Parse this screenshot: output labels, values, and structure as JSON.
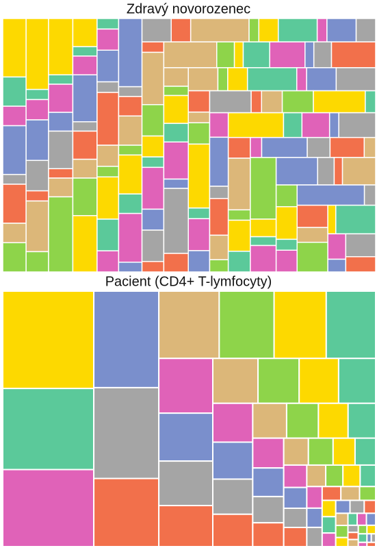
{
  "chart_data": [
    {
      "type": "treemap",
      "title": "Zdravý novorozenec",
      "colors": [
        "#fdd900",
        "#5bc99a",
        "#e062b8",
        "#7a8fcc",
        "#a5a5a5",
        "#f2704b",
        "#dcb779",
        "#8ed44a"
      ],
      "values": [
        6,
        3,
        2,
        5,
        1,
        4,
        2,
        3,
        7,
        1,
        2,
        4,
        3,
        1,
        5,
        2,
        6,
        1,
        3,
        2,
        4,
        1,
        2,
        8,
        3,
        1,
        2,
        5,
        1,
        3,
        2,
        4,
        6,
        1,
        2,
        3,
        1,
        5,
        2,
        1,
        4,
        3,
        2,
        7,
        1,
        2,
        3,
        1,
        4,
        2,
        5,
        1,
        3,
        2,
        6,
        1,
        2,
        4,
        1,
        3,
        2,
        1,
        5,
        3,
        2,
        1,
        4,
        2,
        3,
        1,
        6,
        2,
        1,
        3,
        4,
        1,
        2,
        5,
        2,
        1,
        3,
        2,
        4,
        1,
        7,
        2,
        3,
        1,
        2,
        5,
        1,
        3,
        4,
        2,
        1,
        2,
        6,
        1,
        3,
        2,
        4,
        1,
        2,
        3,
        5,
        1,
        2,
        4,
        1,
        3,
        2,
        1,
        6,
        2,
        3,
        1,
        4,
        2,
        5,
        1,
        3,
        2,
        1,
        4,
        2,
        3,
        1,
        7,
        2,
        1,
        3,
        5,
        2,
        1,
        4,
        2,
        3,
        1,
        2,
        6,
        1,
        3,
        2,
        4,
        1,
        5,
        2,
        1,
        3,
        2
      ]
    },
    {
      "type": "treemap",
      "title": "Pacient (CD4+ T-lymfocyty)",
      "colors": [
        "#fdd900",
        "#5bc99a",
        "#e062b8",
        "#7a8fcc",
        "#a5a5a5",
        "#f2704b",
        "#dcb779",
        "#8ed44a"
      ],
      "values": [
        240,
        200,
        190,
        170,
        160,
        120,
        110,
        100,
        95,
        90,
        80,
        70,
        65,
        60,
        55,
        50,
        48,
        45,
        42,
        40,
        38,
        35,
        32,
        30,
        28,
        26,
        25,
        24,
        22,
        20,
        18,
        18,
        16,
        15,
        14,
        13,
        12,
        12,
        11,
        10,
        10,
        9,
        9,
        8,
        8,
        7,
        7,
        6,
        6,
        6,
        5,
        5,
        5,
        4,
        4,
        4,
        3,
        3,
        3,
        3,
        2,
        2,
        2,
        2,
        2,
        2,
        1,
        1,
        1,
        1
      ]
    }
  ]
}
